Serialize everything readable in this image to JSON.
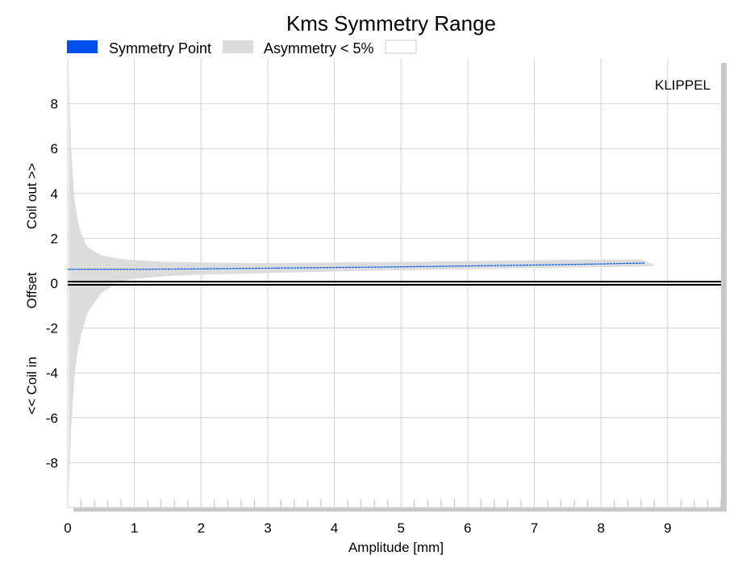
{
  "chart_data": {
    "type": "area",
    "title": "Kms Symmetry Range",
    "xlabel": "Amplitude [mm]",
    "ylabel": {
      "top": "Coil out >>",
      "middle": "Offset",
      "bottom": "<< Coil in"
    },
    "watermark": "KLIPPEL",
    "xlim": [
      0,
      9.8
    ],
    "ylim": [
      -10,
      10
    ],
    "xticks": [
      "0",
      "1",
      "2",
      "3",
      "4",
      "5",
      "6",
      "7",
      "8",
      "9"
    ],
    "yticks": [
      "8",
      "6",
      "4",
      "2",
      "0",
      "-2",
      "-4",
      "-6",
      "-8"
    ],
    "grid": true,
    "legend_placement": "top-left",
    "legend": [
      {
        "label": "Symmetry Point",
        "color": "#0050f0"
      },
      {
        "label": "Asymmetry < 5%",
        "color": "#dcdcdc"
      },
      {
        "label": "",
        "color": "#ffffff"
      }
    ],
    "series": [
      {
        "name": "Symmetry Point",
        "color": "#0050f0",
        "x": [
          0.0,
          0.5,
          1.0,
          2.0,
          3.0,
          4.0,
          5.0,
          6.0,
          7.0,
          8.0,
          8.65
        ],
        "y": [
          0.62,
          0.62,
          0.62,
          0.64,
          0.67,
          0.7,
          0.73,
          0.77,
          0.81,
          0.86,
          0.9
        ]
      },
      {
        "name": "Asymmetry < 5%",
        "color": "#dcdcdc",
        "x": [
          0.02,
          0.05,
          0.1,
          0.15,
          0.2,
          0.3,
          0.5,
          0.75,
          1.0,
          1.5,
          2.0,
          3.0,
          4.0,
          5.0,
          6.0,
          7.0,
          8.0,
          8.6,
          8.8
        ],
        "upper": [
          9.5,
          6.0,
          3.8,
          2.8,
          2.2,
          1.6,
          1.25,
          1.1,
          1.02,
          0.95,
          0.92,
          0.9,
          0.92,
          0.95,
          0.98,
          1.02,
          1.05,
          1.05,
          0.82
        ],
        "lower": [
          -9.5,
          -6.5,
          -4.2,
          -3.0,
          -2.3,
          -1.3,
          -0.45,
          0.05,
          0.2,
          0.32,
          0.38,
          0.45,
          0.52,
          0.58,
          0.63,
          0.68,
          0.72,
          0.74,
          0.78
        ]
      }
    ]
  }
}
